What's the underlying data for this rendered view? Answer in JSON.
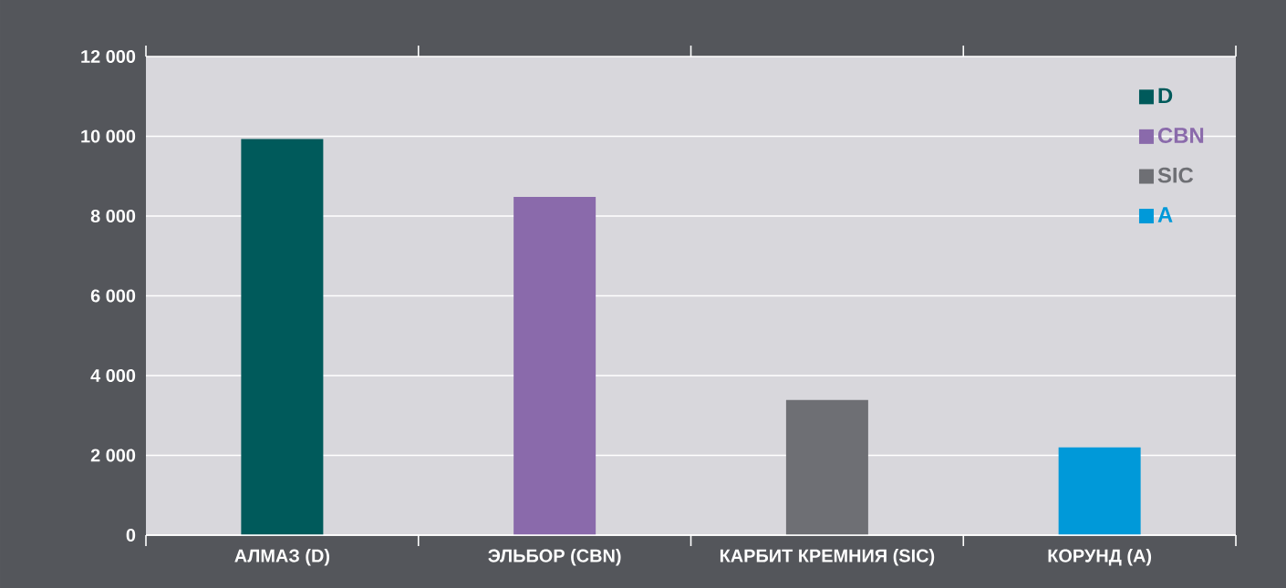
{
  "chart_data": {
    "type": "bar",
    "categories": [
      "АЛМАЗ (D)",
      "ЭЛЬБОР (CBN)",
      "КАРБИТ КРЕМНИЯ (SIC)",
      "КОРУНД (A)"
    ],
    "series": [
      {
        "name": "D",
        "color": "#005a5b",
        "values": [
          9930,
          null,
          null,
          null
        ]
      },
      {
        "name": "CBN",
        "color": "#8a6aab",
        "values": [
          null,
          8480,
          null,
          null
        ]
      },
      {
        "name": "SIC",
        "color": "#6e6f74",
        "values": [
          null,
          null,
          3390,
          null
        ]
      },
      {
        "name": "A",
        "color": "#0099d9",
        "values": [
          null,
          null,
          null,
          2200
        ]
      }
    ],
    "ylim": [
      0,
      12000
    ],
    "yticks": [
      {
        "value": 0,
        "label": "0"
      },
      {
        "value": 2000,
        "label": "2 000"
      },
      {
        "value": 4000,
        "label": "4 000"
      },
      {
        "value": 6000,
        "label": "6 000"
      },
      {
        "value": 8000,
        "label": "8 000"
      },
      {
        "value": 10000,
        "label": "10 000"
      },
      {
        "value": 12000,
        "label": "12 000"
      }
    ],
    "grid": "y",
    "legend": "top right"
  }
}
